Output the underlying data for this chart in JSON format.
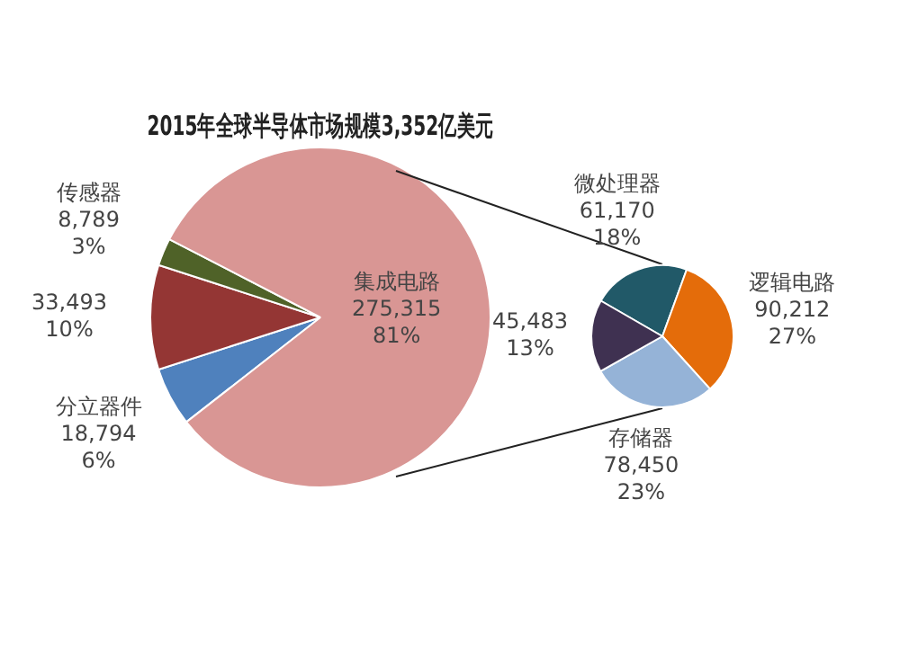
{
  "chart_data": [
    {
      "type": "pie",
      "title": "2015年全球半导体市场规模3,352亿美元",
      "categories": [
        "分立器件",
        null,
        "传感器",
        "集成电路"
      ],
      "values": [
        18794,
        33493,
        8789,
        275315
      ],
      "colors": [
        "#4f81bd",
        "#943634",
        "#4f6228",
        "#d99694"
      ],
      "value_labels": [
        "18,794\n6%",
        "33,493\n10%",
        "8,789\n3%",
        "275,315\n81%"
      ]
    },
    {
      "type": "pie",
      "categories": [
        "微处理器",
        "逻辑电路",
        "存储器",
        null
      ],
      "values": [
        61170,
        90212,
        78450,
        45483
      ],
      "colors": [
        "#215968",
        "#e46c0a",
        "#95b3d7",
        "#3f3151"
      ],
      "value_labels": [
        "61,170\n18%",
        "90,212\n27%",
        "78,450\n23%",
        "45,483\n13%"
      ]
    }
  ]
}
